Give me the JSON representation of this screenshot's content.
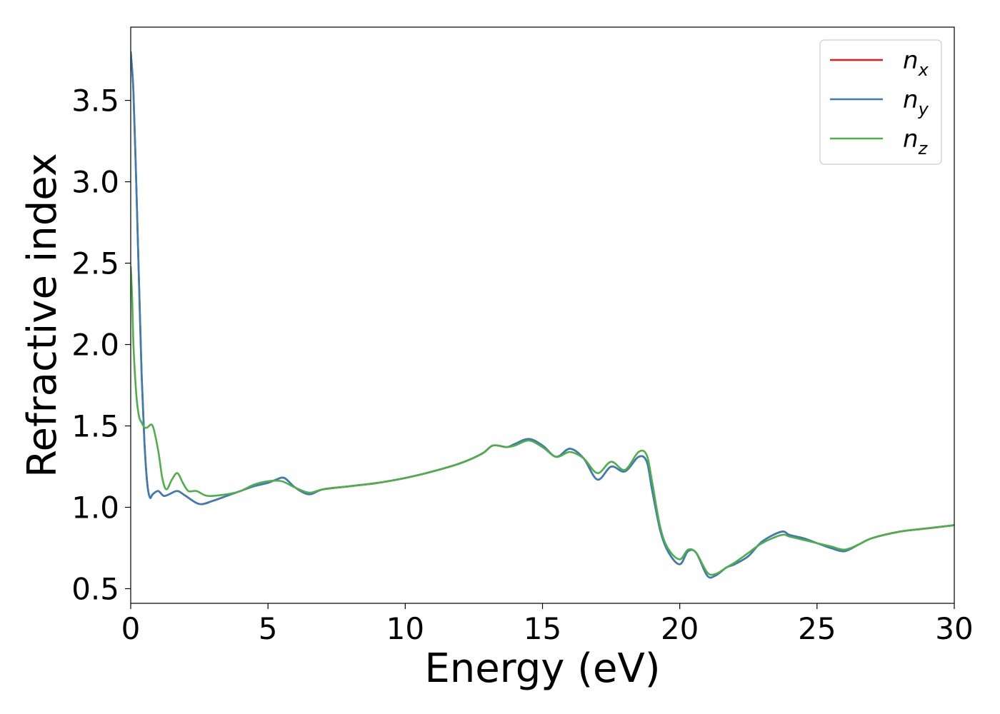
{
  "chart_data": {
    "type": "line",
    "title": "",
    "xlabel": "Energy (eV)",
    "ylabel": "Refractive index",
    "xlim": [
      0,
      30
    ],
    "ylim": [
      0.41,
      3.95
    ],
    "xticks": [
      0,
      5,
      10,
      15,
      20,
      25,
      30
    ],
    "yticks": [
      0.5,
      1.0,
      1.5,
      2.0,
      2.5,
      3.0,
      3.5
    ],
    "xtick_labels": [
      "0",
      "5",
      "10",
      "15",
      "20",
      "25",
      "30"
    ],
    "ytick_labels": [
      "0.5",
      "1.0",
      "1.5",
      "2.0",
      "2.5",
      "3.0",
      "3.5"
    ],
    "grid": false,
    "legend": {
      "placement": "top-right"
    },
    "series": [
      {
        "name": "n",
        "subscript": "x",
        "color": "#e41a1c",
        "x": [
          0,
          0.1,
          0.2,
          0.3,
          0.4,
          0.5,
          0.6,
          0.7,
          0.8,
          1.0,
          1.2,
          1.4,
          1.7,
          2.0,
          2.5,
          3.0,
          3.5,
          4.0,
          4.5,
          5.0,
          5.3,
          5.6,
          6.0,
          6.5,
          7.0,
          8.0,
          9.0,
          10.0,
          11.0,
          12.0,
          12.8,
          13.2,
          13.7,
          14.0,
          14.5,
          15.0,
          15.5,
          16.0,
          16.5,
          17.0,
          17.5,
          18.0,
          18.5,
          18.8,
          19.0,
          19.3,
          19.6,
          20.0,
          20.3,
          20.6,
          21.0,
          21.3,
          21.7,
          22.0,
          22.5,
          23.0,
          23.7,
          24.0,
          24.5,
          25.0,
          25.5,
          26.0,
          26.5,
          27.0,
          28.0,
          29.0,
          30.0
        ],
        "y": [
          3.8,
          3.55,
          3.0,
          2.4,
          1.8,
          1.4,
          1.15,
          1.06,
          1.08,
          1.1,
          1.07,
          1.08,
          1.1,
          1.07,
          1.02,
          1.04,
          1.07,
          1.1,
          1.13,
          1.15,
          1.17,
          1.18,
          1.12,
          1.08,
          1.11,
          1.13,
          1.15,
          1.18,
          1.22,
          1.27,
          1.33,
          1.38,
          1.37,
          1.39,
          1.42,
          1.38,
          1.31,
          1.36,
          1.3,
          1.17,
          1.25,
          1.22,
          1.31,
          1.28,
          1.1,
          0.85,
          0.72,
          0.65,
          0.73,
          0.72,
          0.58,
          0.58,
          0.63,
          0.65,
          0.7,
          0.79,
          0.85,
          0.83,
          0.81,
          0.78,
          0.75,
          0.73,
          0.77,
          0.81,
          0.85,
          0.87,
          0.89
        ]
      },
      {
        "name": "n",
        "subscript": "y",
        "color": "#377eb8",
        "x": [
          0,
          0.1,
          0.2,
          0.3,
          0.4,
          0.5,
          0.6,
          0.7,
          0.8,
          1.0,
          1.2,
          1.4,
          1.7,
          2.0,
          2.5,
          3.0,
          3.5,
          4.0,
          4.5,
          5.0,
          5.3,
          5.6,
          6.0,
          6.5,
          7.0,
          8.0,
          9.0,
          10.0,
          11.0,
          12.0,
          12.8,
          13.2,
          13.7,
          14.0,
          14.5,
          15.0,
          15.5,
          16.0,
          16.5,
          17.0,
          17.5,
          18.0,
          18.5,
          18.8,
          19.0,
          19.3,
          19.6,
          20.0,
          20.3,
          20.6,
          21.0,
          21.3,
          21.7,
          22.0,
          22.5,
          23.0,
          23.7,
          24.0,
          24.5,
          25.0,
          25.5,
          26.0,
          26.5,
          27.0,
          28.0,
          29.0,
          30.0
        ],
        "y": [
          3.8,
          3.55,
          3.0,
          2.4,
          1.8,
          1.4,
          1.15,
          1.06,
          1.08,
          1.1,
          1.07,
          1.08,
          1.1,
          1.07,
          1.02,
          1.04,
          1.07,
          1.1,
          1.13,
          1.15,
          1.17,
          1.18,
          1.12,
          1.08,
          1.11,
          1.13,
          1.15,
          1.18,
          1.22,
          1.27,
          1.33,
          1.38,
          1.37,
          1.39,
          1.42,
          1.38,
          1.31,
          1.36,
          1.3,
          1.17,
          1.25,
          1.22,
          1.31,
          1.28,
          1.1,
          0.85,
          0.72,
          0.65,
          0.73,
          0.72,
          0.58,
          0.58,
          0.63,
          0.65,
          0.7,
          0.79,
          0.85,
          0.83,
          0.81,
          0.78,
          0.75,
          0.73,
          0.77,
          0.81,
          0.85,
          0.87,
          0.89
        ]
      },
      {
        "name": "n",
        "subscript": "z",
        "color": "#4daf4a",
        "x": [
          0,
          0.05,
          0.1,
          0.2,
          0.3,
          0.4,
          0.5,
          0.6,
          0.8,
          1.0,
          1.15,
          1.3,
          1.5,
          1.7,
          1.9,
          2.1,
          2.4,
          2.8,
          3.5,
          4.0,
          4.5,
          5.0,
          5.5,
          6.0,
          6.5,
          7.0,
          8.0,
          9.0,
          10.0,
          11.0,
          12.0,
          12.8,
          13.2,
          13.7,
          14.0,
          14.5,
          15.0,
          15.5,
          16.0,
          16.5,
          17.0,
          17.5,
          18.0,
          18.5,
          18.8,
          19.0,
          19.3,
          19.6,
          20.0,
          20.3,
          20.6,
          21.0,
          21.3,
          21.7,
          22.0,
          22.5,
          23.0,
          23.7,
          24.0,
          24.5,
          25.0,
          25.5,
          26.0,
          26.5,
          27.0,
          28.0,
          29.0,
          30.0
        ],
        "y": [
          2.48,
          2.3,
          2.0,
          1.7,
          1.56,
          1.52,
          1.49,
          1.49,
          1.5,
          1.35,
          1.18,
          1.11,
          1.17,
          1.21,
          1.15,
          1.1,
          1.1,
          1.07,
          1.08,
          1.1,
          1.14,
          1.16,
          1.16,
          1.12,
          1.09,
          1.11,
          1.13,
          1.15,
          1.18,
          1.22,
          1.27,
          1.33,
          1.38,
          1.37,
          1.38,
          1.41,
          1.37,
          1.31,
          1.34,
          1.3,
          1.21,
          1.28,
          1.23,
          1.34,
          1.32,
          1.15,
          0.87,
          0.74,
          0.68,
          0.74,
          0.72,
          0.6,
          0.59,
          0.63,
          0.66,
          0.72,
          0.78,
          0.83,
          0.82,
          0.8,
          0.78,
          0.76,
          0.74,
          0.77,
          0.81,
          0.85,
          0.87,
          0.89
        ]
      }
    ]
  }
}
